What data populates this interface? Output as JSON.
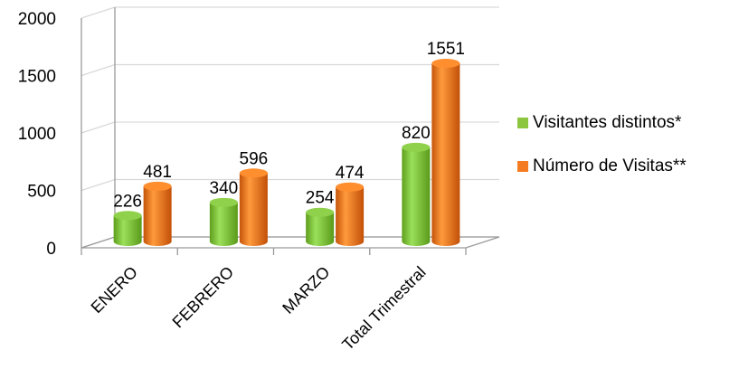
{
  "chart_data": {
    "type": "bar",
    "variant": "3d-cylinder",
    "categories": [
      "ENERO",
      "FEBRERO",
      "MARZO",
      "Total Trimestral"
    ],
    "series": [
      {
        "name": "Visitantes distintos*",
        "values": [
          226,
          340,
          254,
          820
        ],
        "color": "#8cc63f"
      },
      {
        "name": "Número de Visitas**",
        "values": [
          481,
          596,
          474,
          1551
        ],
        "color": "#f47b20"
      }
    ],
    "yticks": [
      "0",
      "500",
      "1000",
      "1500",
      "2000"
    ],
    "ylim": [
      0,
      2000
    ],
    "grid": true,
    "legend": "right"
  }
}
